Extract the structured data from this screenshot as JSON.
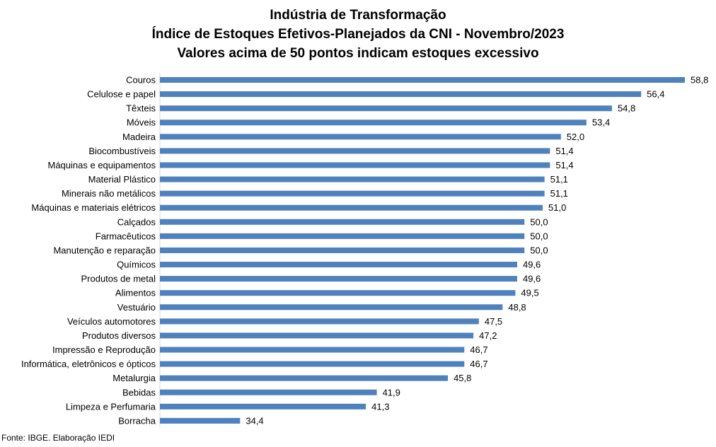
{
  "chart_data": {
    "type": "bar",
    "orientation": "horizontal",
    "title_lines": [
      "Indústria de Transformação",
      "Índice de Estoques Efetivos-Planejados da CNI - Novembro/2023",
      "Valores acima de 50 pontos indicam estoques excessivo"
    ],
    "categories": [
      "Couros",
      "Celulose e papel",
      "Têxteis",
      "Móveis",
      "Madeira",
      "Biocombustíveis",
      "Máquinas e equipamentos",
      "Material Plástico",
      "Minerais não metálicos",
      "Máquinas e materiais elétricos",
      "Calçados",
      "Farmacêuticos",
      "Manutenção e reparação",
      "Químicos",
      "Produtos de metal",
      "Alimentos",
      "Vestuário",
      "Veículos automotores",
      "Produtos diversos",
      "Impressão e Reprodução ",
      "Informática, eletrônicos e ópticos",
      "Metalurgia",
      "Bebidas",
      "Limpeza e Perfumaria",
      "Borracha"
    ],
    "values": [
      58.8,
      56.4,
      54.8,
      53.4,
      52.0,
      51.4,
      51.4,
      51.1,
      51.1,
      51.0,
      50.0,
      50.0,
      50.0,
      49.6,
      49.6,
      49.5,
      48.8,
      47.5,
      47.2,
      46.7,
      46.7,
      45.8,
      41.9,
      41.3,
      34.4
    ],
    "value_labels": [
      "58,8",
      "56,4",
      "54,8",
      "53,4",
      "52,0",
      "51,4",
      "51,4",
      "51,1",
      "51,1",
      "51,0",
      "50,0",
      "50,0",
      "50,0",
      "49,6",
      "49,6",
      "49,5",
      "48,8",
      "47,5",
      "47,2",
      "46,7",
      "46,7",
      "45,8",
      "41,9",
      "41,3",
      "34,4"
    ],
    "xlim": [
      30,
      60
    ],
    "bar_color": "#4f81bd",
    "grid": false,
    "legend": "none"
  },
  "source": "Fonte: IBGE. Elaboração IEDI"
}
